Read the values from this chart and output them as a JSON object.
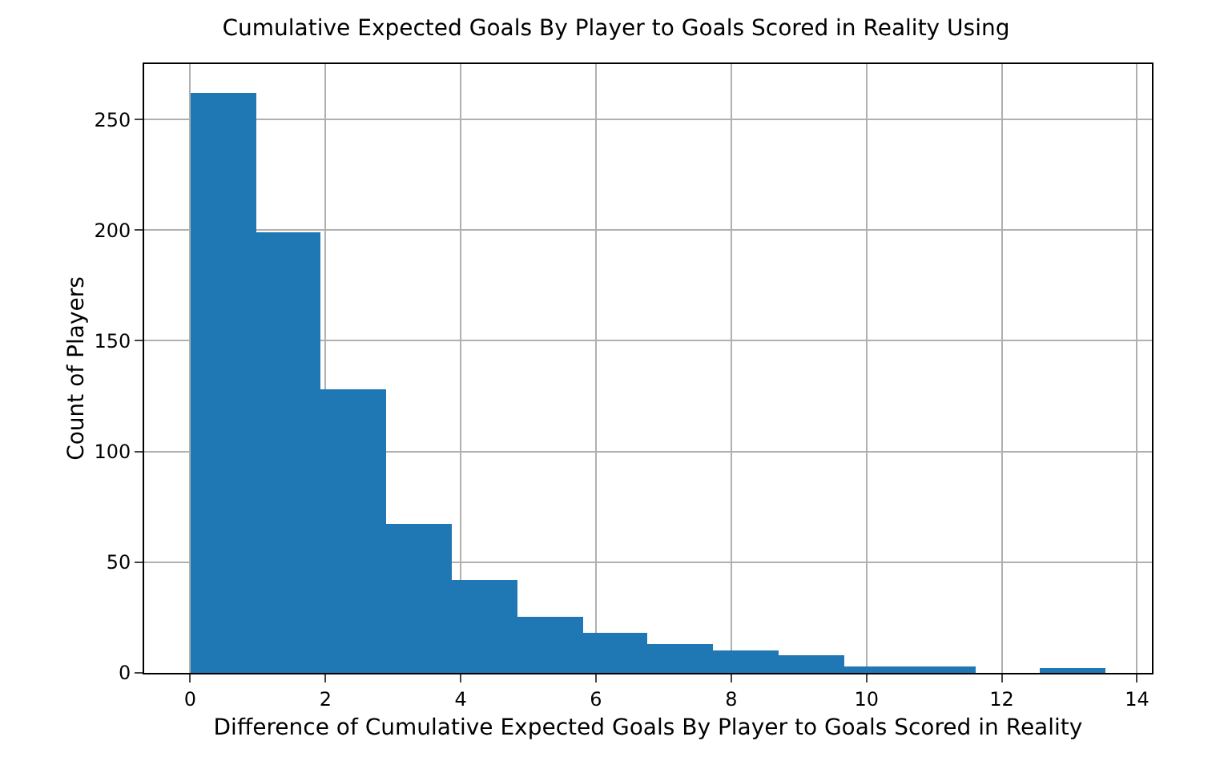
{
  "chart_data": {
    "type": "histogram",
    "title": "Cumulative Expected Goals By Player to Goals Scored in Reality Using",
    "xlabel": "Difference of Cumulative Expected Goals By Player to Goals Scored in Reality",
    "ylabel": "Count of Players",
    "bins": [
      0,
      0.967,
      1.934,
      2.901,
      3.868,
      4.835,
      5.802,
      6.769,
      7.736,
      8.703,
      9.67,
      10.637,
      11.604,
      12.571,
      13.54
    ],
    "values": [
      262,
      199,
      128,
      67,
      42,
      25,
      18,
      13,
      10,
      8,
      3,
      3,
      0,
      2
    ],
    "color": "#1f77b4",
    "xlim": [
      -0.68,
      14.22
    ],
    "xticks": [
      0,
      2,
      4,
      6,
      8,
      10,
      12,
      14
    ],
    "ylim": [
      0,
      275
    ],
    "yticks": [
      0,
      50,
      100,
      150,
      200,
      250
    ],
    "grid": true
  }
}
